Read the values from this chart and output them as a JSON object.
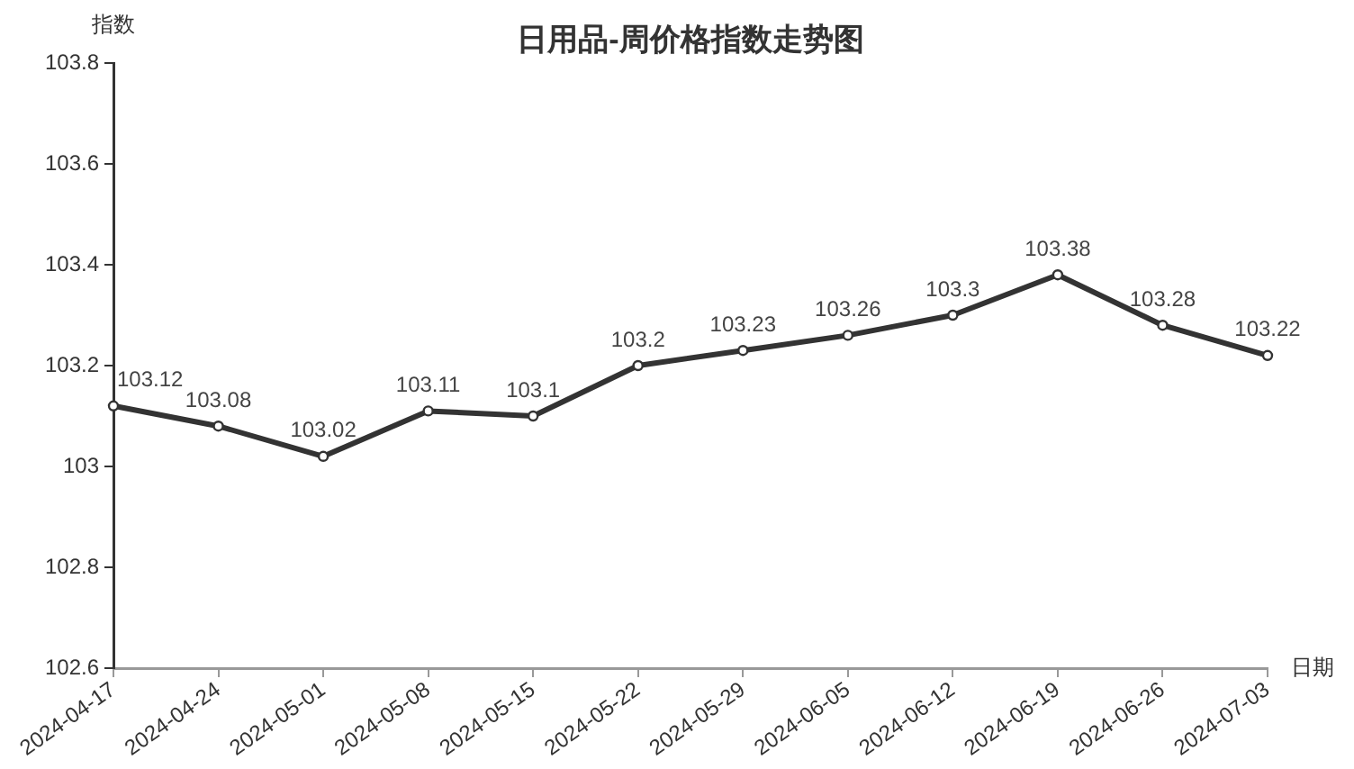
{
  "chart_data": {
    "type": "line",
    "title": "日用品-周价格指数走势图",
    "xlabel": "日期",
    "ylabel": "指数",
    "categories": [
      "2024-04-17",
      "2024-04-24",
      "2024-05-01",
      "2024-05-08",
      "2024-05-15",
      "2024-05-22",
      "2024-05-29",
      "2024-06-05",
      "2024-06-12",
      "2024-06-19",
      "2024-06-26",
      "2024-07-03"
    ],
    "series": [
      {
        "color": "#333333",
        "values": [
          103.12,
          103.08,
          103.02,
          103.11,
          103.1,
          103.2,
          103.23,
          103.26,
          103.3,
          103.38,
          103.28,
          103.22
        ]
      }
    ],
    "ylim": [
      102.6,
      103.8
    ],
    "yticks": [
      102.6,
      102.8,
      103,
      103.2,
      103.4,
      103.6,
      103.8
    ],
    "grid": false,
    "legend": false,
    "marker": "circle",
    "line_style": "solid",
    "data_labels": true
  }
}
